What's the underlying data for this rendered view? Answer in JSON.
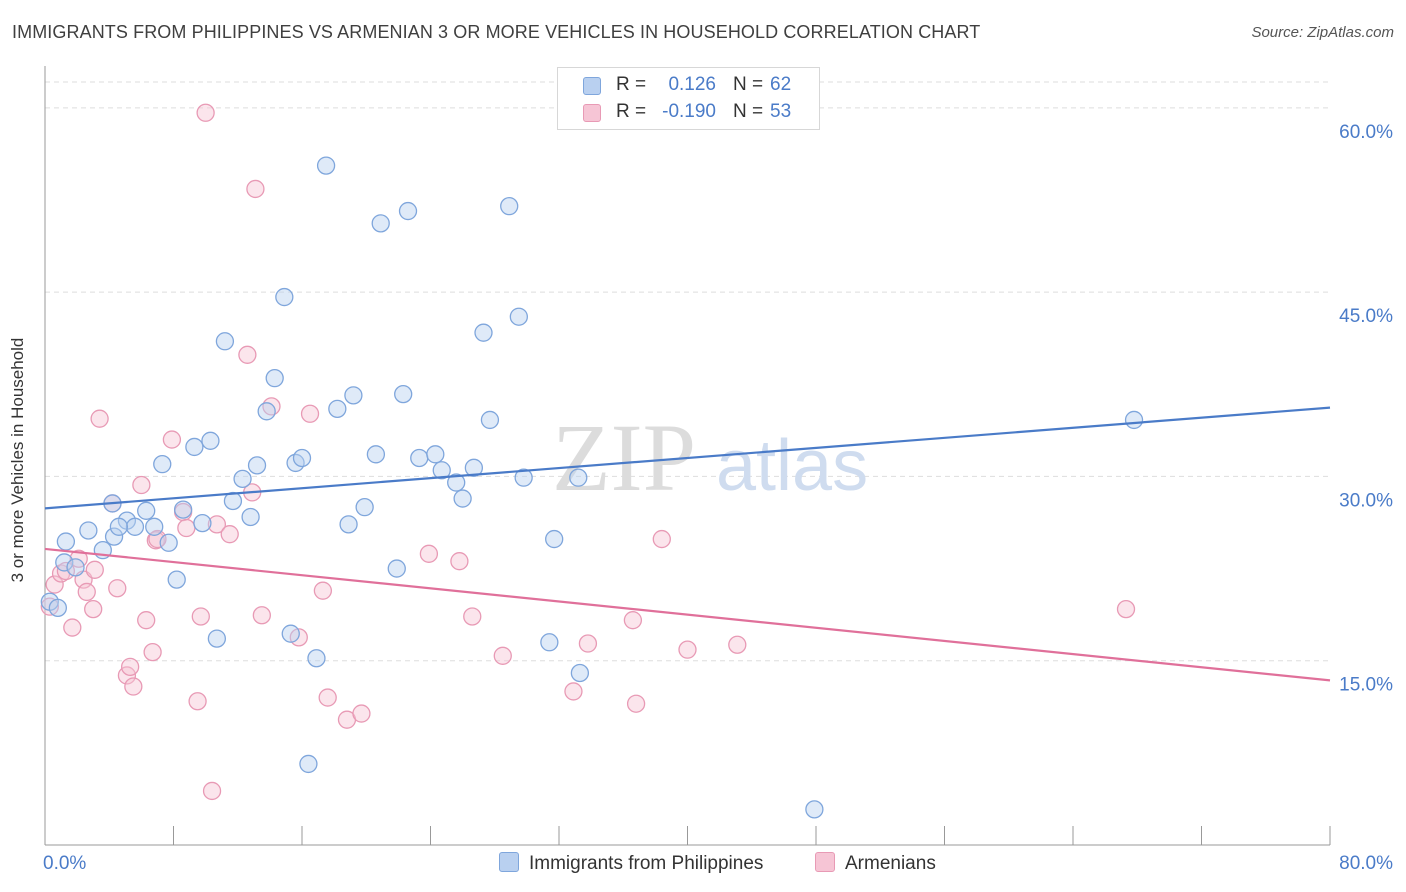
{
  "title": "IMMIGRANTS FROM PHILIPPINES VS ARMENIAN 3 OR MORE VEHICLES IN HOUSEHOLD CORRELATION CHART",
  "source": "Source: ZipAtlas.com",
  "colors": {
    "blue": "#4a7bc8",
    "blue_fill": "#b9d0f0",
    "pink": "#e0709a",
    "pink_fill": "#f6c5d5",
    "grid": "#dddddd"
  },
  "legend": {
    "rows": [
      {
        "r_label": "R =",
        "r_value": "0.126",
        "n_label": "N =",
        "n_value": "62"
      },
      {
        "r_label": "R =",
        "r_value": "-0.190",
        "n_label": "N =",
        "n_value": "53"
      }
    ]
  },
  "bottom_legend": {
    "series1": "Immigrants from Philippines",
    "series2": "Armenians"
  },
  "watermark": {
    "zip": "ZIP",
    "atlas": "atlas"
  },
  "chart_data": {
    "type": "scatter",
    "title": "IMMIGRANTS FROM PHILIPPINES VS ARMENIAN 3 OR MORE VEHICLES IN HOUSEHOLD CORRELATION CHART",
    "xlabel": "",
    "ylabel": "3 or more Vehicles in Household",
    "xlim": [
      0,
      80
    ],
    "ylim": [
      0,
      63
    ],
    "x_tick_labels": [
      "0.0%",
      "80.0%"
    ],
    "y_ticks": [
      15,
      30,
      45,
      60
    ],
    "y_tick_labels": [
      "15.0%",
      "30.0%",
      "45.0%",
      "60.0%"
    ],
    "grid": true,
    "legend_position": "top-center",
    "series": [
      {
        "name": "Immigrants from Philippines",
        "color": "#4a7bc8",
        "trend": {
          "x": [
            0,
            80
          ],
          "y": [
            27.4,
            35.6
          ]
        },
        "points": [
          [
            0.3,
            19.8
          ],
          [
            1.3,
            24.7
          ],
          [
            1.2,
            23.0
          ],
          [
            1.9,
            22.6
          ],
          [
            2.7,
            25.6
          ],
          [
            3.6,
            24.0
          ],
          [
            4.2,
            27.8
          ],
          [
            4.3,
            25.1
          ],
          [
            5.1,
            26.4
          ],
          [
            5.6,
            25.9
          ],
          [
            6.3,
            27.2
          ],
          [
            6.8,
            25.9
          ],
          [
            7.3,
            31.0
          ],
          [
            7.7,
            24.6
          ],
          [
            8.2,
            21.6
          ],
          [
            8.6,
            27.3
          ],
          [
            9.3,
            32.4
          ],
          [
            9.8,
            26.2
          ],
          [
            10.3,
            32.9
          ],
          [
            10.7,
            16.8
          ],
          [
            11.2,
            41.0
          ],
          [
            11.7,
            28.0
          ],
          [
            12.3,
            29.8
          ],
          [
            12.8,
            26.7
          ],
          [
            13.2,
            30.9
          ],
          [
            13.8,
            35.3
          ],
          [
            14.3,
            38.0
          ],
          [
            14.9,
            44.6
          ],
          [
            15.3,
            17.2
          ],
          [
            15.6,
            31.1
          ],
          [
            16.0,
            31.5
          ],
          [
            16.4,
            6.6
          ],
          [
            16.9,
            15.2
          ],
          [
            17.5,
            55.3
          ],
          [
            18.2,
            35.5
          ],
          [
            18.9,
            26.1
          ],
          [
            19.2,
            36.6
          ],
          [
            19.9,
            27.5
          ],
          [
            20.6,
            31.8
          ],
          [
            20.9,
            50.6
          ],
          [
            21.9,
            22.5
          ],
          [
            22.3,
            36.7
          ],
          [
            22.6,
            51.6
          ],
          [
            23.3,
            31.5
          ],
          [
            24.3,
            31.8
          ],
          [
            24.7,
            30.5
          ],
          [
            25.6,
            29.5
          ],
          [
            26.0,
            28.2
          ],
          [
            26.7,
            30.7
          ],
          [
            27.3,
            41.7
          ],
          [
            27.7,
            34.6
          ],
          [
            28.9,
            52.0
          ],
          [
            29.5,
            43.0
          ],
          [
            29.8,
            29.9
          ],
          [
            31.4,
            16.5
          ],
          [
            31.7,
            24.9
          ],
          [
            33.2,
            29.9
          ],
          [
            33.3,
            14.0
          ],
          [
            47.9,
            2.9
          ],
          [
            67.8,
            34.6
          ],
          [
            0.8,
            19.3
          ],
          [
            4.6,
            25.9
          ]
        ]
      },
      {
        "name": "Armenians",
        "color": "#e0709a",
        "trend": {
          "x": [
            0,
            80
          ],
          "y": [
            24.1,
            13.4
          ]
        },
        "points": [
          [
            0.3,
            19.4
          ],
          [
            0.6,
            21.2
          ],
          [
            1.0,
            22.1
          ],
          [
            1.3,
            22.3
          ],
          [
            1.7,
            17.7
          ],
          [
            2.1,
            23.3
          ],
          [
            2.4,
            21.6
          ],
          [
            2.6,
            20.6
          ],
          [
            3.0,
            19.2
          ],
          [
            3.4,
            34.7
          ],
          [
            4.2,
            27.8
          ],
          [
            4.5,
            20.9
          ],
          [
            5.1,
            13.8
          ],
          [
            5.3,
            14.5
          ],
          [
            5.5,
            12.9
          ],
          [
            6.0,
            29.3
          ],
          [
            6.3,
            18.3
          ],
          [
            6.7,
            15.7
          ],
          [
            6.9,
            24.8
          ],
          [
            7.0,
            24.9
          ],
          [
            7.9,
            33.0
          ],
          [
            8.6,
            27.1
          ],
          [
            8.8,
            25.8
          ],
          [
            9.5,
            11.7
          ],
          [
            9.7,
            18.6
          ],
          [
            10.0,
            59.6
          ],
          [
            10.4,
            4.4
          ],
          [
            10.7,
            26.1
          ],
          [
            11.5,
            25.3
          ],
          [
            12.6,
            39.9
          ],
          [
            12.9,
            28.7
          ],
          [
            13.1,
            53.4
          ],
          [
            13.5,
            18.7
          ],
          [
            14.1,
            35.7
          ],
          [
            15.8,
            16.9
          ],
          [
            16.5,
            35.1
          ],
          [
            17.3,
            20.7
          ],
          [
            17.6,
            12.0
          ],
          [
            18.8,
            10.2
          ],
          [
            19.7,
            10.7
          ],
          [
            23.9,
            23.7
          ],
          [
            25.8,
            23.1
          ],
          [
            26.6,
            18.6
          ],
          [
            28.5,
            15.4
          ],
          [
            32.9,
            12.5
          ],
          [
            33.8,
            16.4
          ],
          [
            36.6,
            18.3
          ],
          [
            36.8,
            11.5
          ],
          [
            38.4,
            24.9
          ],
          [
            40.0,
            15.9
          ],
          [
            43.1,
            16.3
          ],
          [
            67.3,
            19.2
          ],
          [
            3.1,
            22.4
          ]
        ]
      }
    ]
  }
}
